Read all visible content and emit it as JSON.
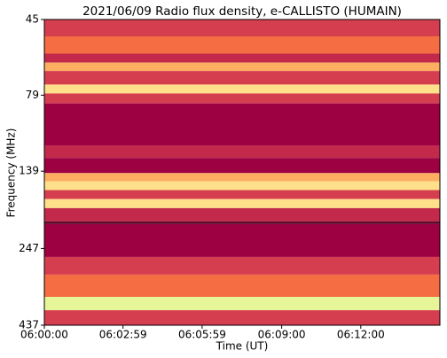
{
  "chart_data": {
    "type": "spectrogram",
    "title": "2021/06/09  Radio flux density, e-CALLISTO (HUMAIN)",
    "x_label": "Time (UT)",
    "y_label": "Frequency (MHz)",
    "xlim": [
      "06:00:00",
      "06:15:00"
    ],
    "xticks": [
      "06:00:00",
      "06:02:59",
      "06:05:59",
      "06:09:00",
      "06:12:00"
    ],
    "ylim": [
      45,
      437
    ],
    "y_log": true,
    "y_inverted": true,
    "yticks": [
      45,
      79,
      139,
      247,
      437
    ],
    "bands": [
      {
        "from": 45,
        "to": 51,
        "color": "#d53e4f"
      },
      {
        "from": 51,
        "to": 58,
        "color": "#f46d43"
      },
      {
        "from": 58,
        "to": 62,
        "color": "#c2294a"
      },
      {
        "from": 62,
        "to": 66,
        "color": "#fdae61"
      },
      {
        "from": 66,
        "to": 73,
        "color": "#d53e4f"
      },
      {
        "from": 73,
        "to": 78,
        "color": "#fee08b"
      },
      {
        "from": 78,
        "to": 84,
        "color": "#d53e4f"
      },
      {
        "from": 84,
        "to": 115,
        "color": "#9e0142"
      },
      {
        "from": 115,
        "to": 126,
        "color": "#c2294a"
      },
      {
        "from": 126,
        "to": 141,
        "color": "#9e0142"
      },
      {
        "from": 141,
        "to": 150,
        "color": "#fdae61"
      },
      {
        "from": 150,
        "to": 160,
        "color": "#fee08b"
      },
      {
        "from": 160,
        "to": 171,
        "color": "#d53e4f"
      },
      {
        "from": 171,
        "to": 183,
        "color": "#fee08b"
      },
      {
        "from": 183,
        "to": 202,
        "color": "#c2294a"
      },
      {
        "from": 202,
        "to": 206,
        "color": "#5e0a2a"
      },
      {
        "from": 206,
        "to": 263,
        "color": "#9e0142"
      },
      {
        "from": 263,
        "to": 300,
        "color": "#d53e4f"
      },
      {
        "from": 300,
        "to": 354,
        "color": "#f46d43"
      },
      {
        "from": 354,
        "to": 391,
        "color": "#e6f598"
      },
      {
        "from": 391,
        "to": 437,
        "color": "#d53e4f"
      }
    ]
  }
}
